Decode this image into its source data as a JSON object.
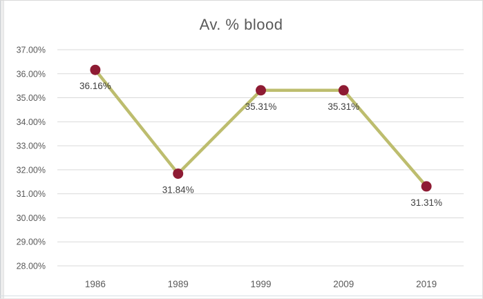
{
  "chart_data": {
    "type": "line",
    "title": "Av. % blood",
    "categories": [
      "1986",
      "1989",
      "1999",
      "2009",
      "2019"
    ],
    "series": [
      {
        "name": "Av. % blood",
        "values": [
          36.16,
          31.84,
          35.31,
          35.31,
          31.31
        ]
      }
    ],
    "data_labels": [
      "36.16%",
      "31.84%",
      "35.31%",
      "35.31%",
      "31.31%"
    ],
    "xlabel": "",
    "ylabel": "",
    "ylim": [
      28,
      37
    ],
    "y_tick_step": 1,
    "y_tick_labels": [
      "28.00%",
      "29.00%",
      "30.00%",
      "31.00%",
      "32.00%",
      "33.00%",
      "34.00%",
      "35.00%",
      "36.00%",
      "37.00%"
    ],
    "grid": true,
    "legend": "none",
    "marker_shape": "circle",
    "colors": {
      "line": "#bdbd6e",
      "marker": "#8e1b33",
      "gridline": "#d9d9d9",
      "axis_text": "#595959",
      "data_label_text": "#404040",
      "title_text": "#595959",
      "background": "#ffffff",
      "border": "#d9d9d9"
    }
  }
}
